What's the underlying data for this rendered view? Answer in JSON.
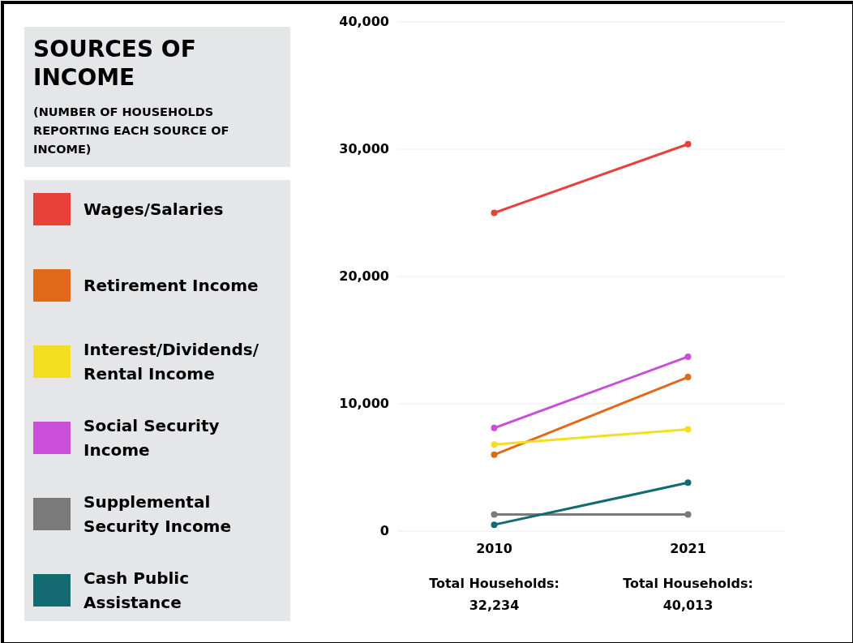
{
  "chart_data": {
    "type": "line",
    "title": "SOURCES OF INCOME",
    "subtitle": "(NUMBER OF HOUSEHOLDS REPORTING EACH SOURCE OF INCOME)",
    "categories": [
      "2010",
      "2021"
    ],
    "series": [
      {
        "name": "Wages/Salaries",
        "color": "#e8413c",
        "values": [
          25000,
          30400
        ]
      },
      {
        "name": "Retirement Income",
        "color": "#e06a1a",
        "values": [
          6000,
          12100
        ]
      },
      {
        "name": "Interest/Dividends/Rental Income",
        "color": "#f5dd20",
        "values": [
          6800,
          8000
        ]
      },
      {
        "name": "Social Security Income",
        "color": "#c94fd8",
        "values": [
          8100,
          13700
        ]
      },
      {
        "name": "Supplemental Security Income",
        "color": "#7a7a7a",
        "values": [
          1300,
          1300
        ]
      },
      {
        "name": "Cash Public Assistance",
        "color": "#136a70",
        "values": [
          500,
          3800
        ]
      }
    ],
    "ylim": [
      0,
      40000
    ],
    "yticks": [
      {
        "value": 0,
        "label": "0"
      },
      {
        "value": 10000,
        "label": "10,000"
      },
      {
        "value": 20000,
        "label": "20,000"
      },
      {
        "value": 30000,
        "label": "30,000"
      },
      {
        "value": 40000,
        "label": "40,000"
      }
    ],
    "grid": "y",
    "legend": "left",
    "marker": "circle",
    "line_style": "solid",
    "annotations": [
      "Total Households:\n32,234",
      "Total Households:\n40,013"
    ]
  }
}
